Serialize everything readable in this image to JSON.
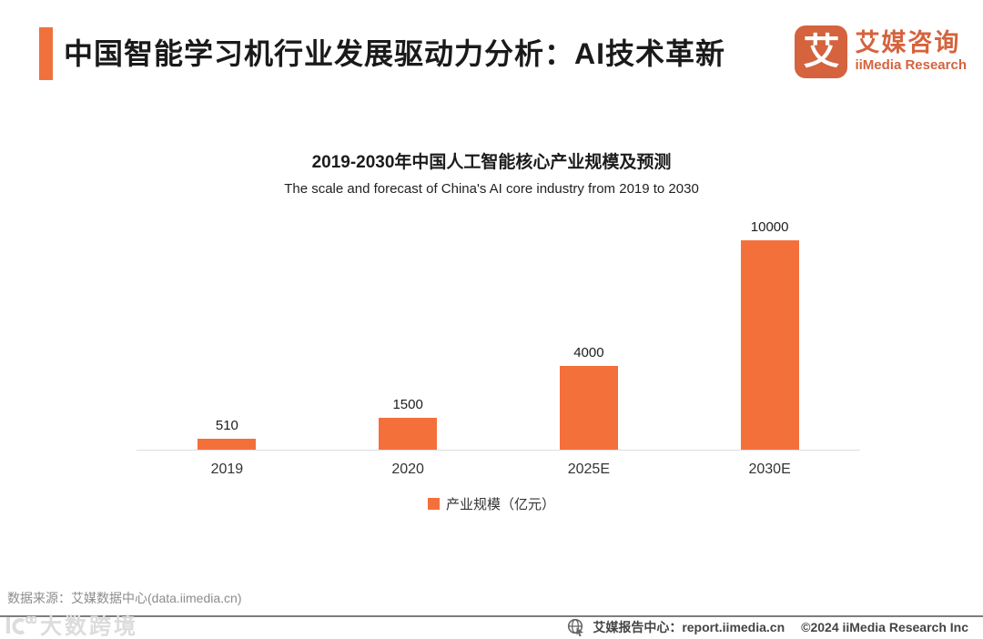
{
  "header": {
    "title": "中国智能学习机行业发展驱动力分析：AI技术革新",
    "logo": {
      "icon_char": "艾",
      "name_cn": "艾媒咨询",
      "name_en": "iiMedia Research"
    }
  },
  "chart_data": {
    "type": "bar",
    "title": "2019-2030年中国人工智能核心产业规模及预测",
    "subtitle": "The scale and forecast of China's AI core industry from 2019 to 2030",
    "categories": [
      "2019",
      "2020",
      "2025E",
      "2030E"
    ],
    "values": [
      510,
      1500,
      4000,
      10000
    ],
    "series_name": "产业规模（亿元）",
    "xlabel": "",
    "ylabel": "",
    "ylim": [
      0,
      10000
    ],
    "grid": false,
    "legend_position": "bottom",
    "bar_color": "#F4703B"
  },
  "footer": {
    "source": "数据来源：艾媒数据中心(data.iimedia.cn)",
    "watermark": "大数跨境",
    "report_center": "艾媒报告中心：report.iimedia.cn",
    "copyright": "©2024  iiMedia Research Inc"
  },
  "colors": {
    "accent": "#F0713C",
    "bar": "#F4703B",
    "logo": "#D4633E"
  }
}
